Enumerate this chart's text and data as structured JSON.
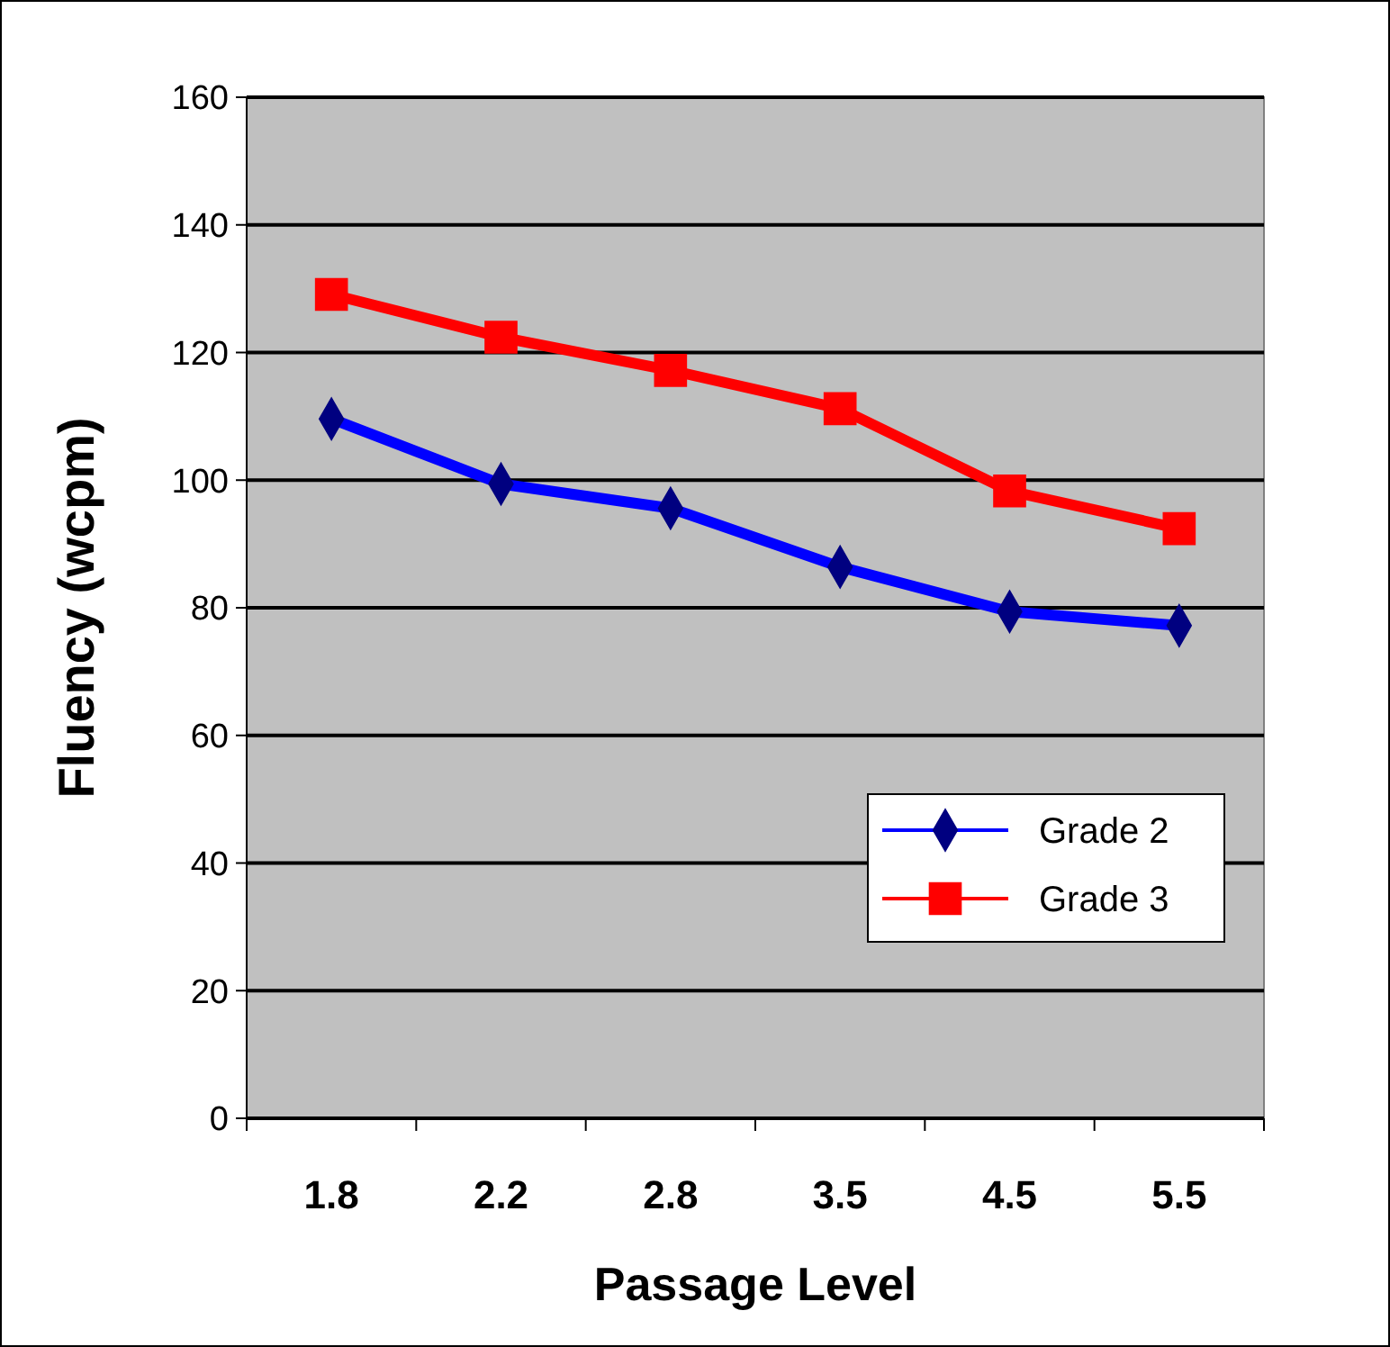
{
  "chart_data": {
    "type": "line",
    "xlabel": "Passage Level",
    "ylabel": "Fluency (wcpm)",
    "categories": [
      "1.8",
      "2.2",
      "2.8",
      "3.5",
      "4.5",
      "5.5"
    ],
    "series": [
      {
        "name": "Grade 2",
        "color": "#0000ff",
        "marker": "diamond",
        "values": [
          109.6,
          99.4,
          95.6,
          86.4,
          79.4,
          77.2
        ]
      },
      {
        "name": "Grade 3",
        "color": "#ff0000",
        "marker": "square",
        "values": [
          129.1,
          122.4,
          117.2,
          111.2,
          98.3,
          92.4
        ]
      }
    ],
    "ylim": [
      0,
      160
    ],
    "yticks": [
      0,
      20,
      40,
      60,
      80,
      100,
      120,
      140,
      160
    ],
    "grid": "y",
    "legend": "bottom right"
  }
}
